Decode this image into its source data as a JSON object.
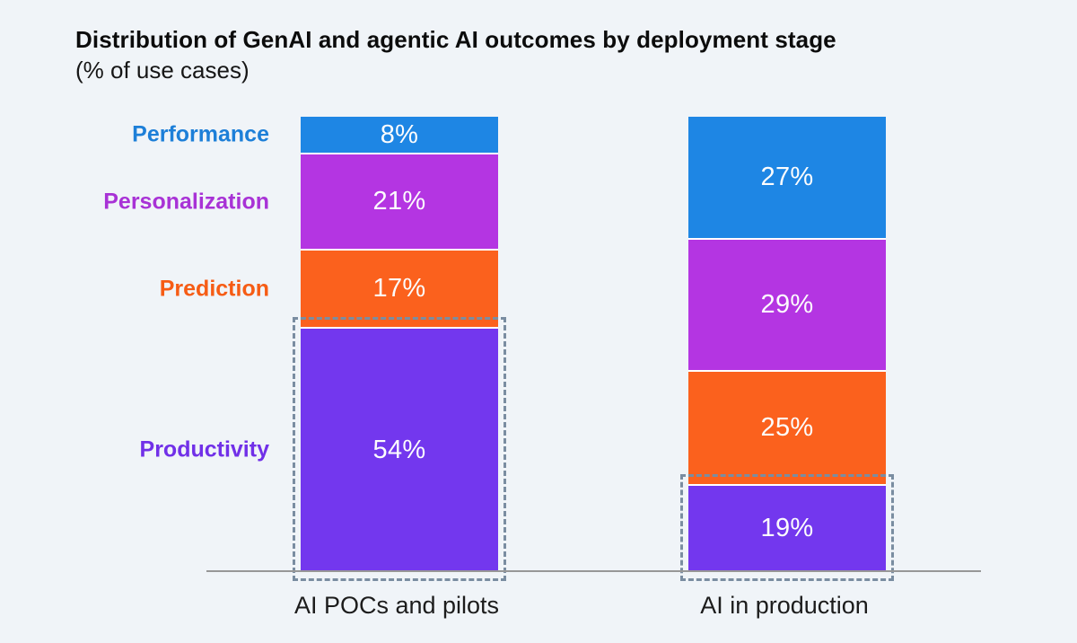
{
  "chart_data": {
    "type": "bar",
    "stacked": true,
    "title": "Distribution of GenAI and agentic AI outcomes by deployment stage",
    "subtitle": "(% of use cases)",
    "categories": [
      "AI POCs and pilots",
      "AI in production"
    ],
    "series": [
      {
        "name": "Performance",
        "color": "#1e86e4",
        "label_color": "#1d7fd8",
        "values": [
          8,
          27
        ]
      },
      {
        "name": "Personalization",
        "color": "#b435e2",
        "label_color": "#a832d6",
        "values": [
          21,
          29
        ]
      },
      {
        "name": "Prediction",
        "color": "#fb611d",
        "label_color": "#f65c15",
        "values": [
          17,
          25
        ]
      },
      {
        "name": "Productivity",
        "color": "#7337ee",
        "label_color": "#7130e8",
        "values": [
          54,
          19
        ]
      }
    ],
    "value_suffix": "%",
    "value_label_color": "#fcfcfd",
    "ylim": [
      0,
      100
    ],
    "grid": false,
    "legend_position": "left-labels-colored",
    "axis_line_color": "#979797",
    "background_color": "#f0f4f8",
    "highlight": {
      "series": "Productivity",
      "style": "dashed-outline",
      "color": "#7a8da1",
      "applies_to": [
        "AI POCs and pilots",
        "AI in production"
      ]
    }
  }
}
